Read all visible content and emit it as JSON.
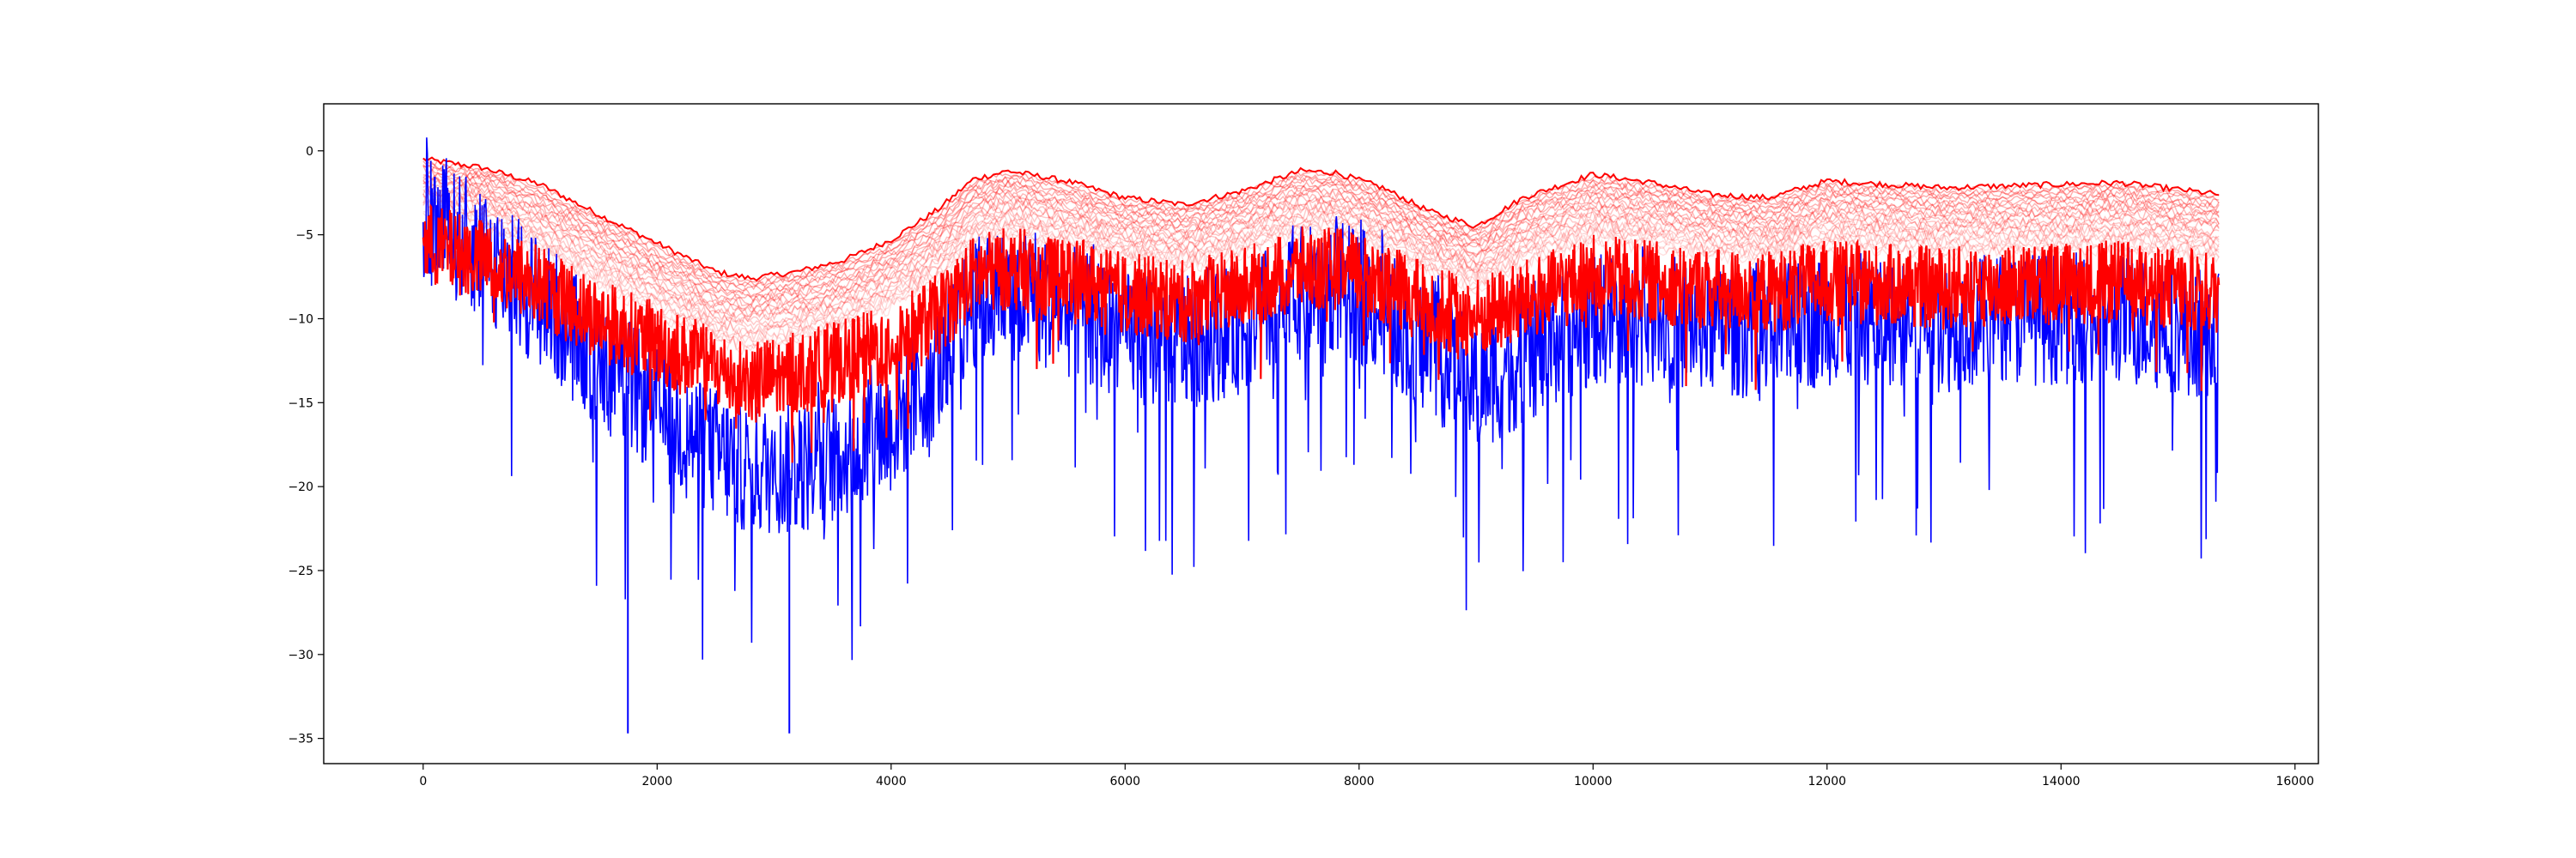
{
  "chart_data": {
    "type": "line",
    "title": "",
    "xlabel": "",
    "ylabel": "",
    "xlim": [
      -850,
      16200
    ],
    "ylim": [
      -36.5,
      2.8
    ],
    "x_ticks": [
      0,
      2000,
      4000,
      6000,
      8000,
      10000,
      12000,
      14000,
      16000
    ],
    "x_tick_labels": [
      "0",
      "2000",
      "4000",
      "6000",
      "8000",
      "10000",
      "12000",
      "14000",
      "16000"
    ],
    "y_ticks": [
      0,
      -5,
      -10,
      -15,
      -20,
      -25,
      -30,
      -35
    ],
    "y_tick_labels": [
      "0",
      "−5",
      "−10",
      "−15",
      "−20",
      "−25",
      "−30",
      "−35"
    ],
    "grid": false,
    "legend": "none",
    "series_colors": {
      "upper_bundle": "#ff0000",
      "noisy_signal": "#0000ff",
      "dense_signal": "#ff0000"
    },
    "x_range": [
      0,
      15350
    ],
    "series": [
      {
        "role": "upper_bundle",
        "description_values": "top envelope of the red curve bundle",
        "x": [
          0,
          500,
          1000,
          1500,
          2000,
          2500,
          2800,
          3200,
          3600,
          4000,
          4400,
          4700,
          5000,
          5500,
          6000,
          6500,
          7000,
          7500,
          7800,
          8200,
          8600,
          9000,
          9400,
          10000,
          10500,
          11000,
          11500,
          12000,
          12500,
          13000,
          13500,
          14000,
          14500,
          15000,
          15350
        ],
        "values": [
          -0.5,
          -1.0,
          -2.0,
          -3.8,
          -5.5,
          -7.2,
          -7.6,
          -7.2,
          -6.5,
          -5.3,
          -3.5,
          -1.7,
          -1.2,
          -1.8,
          -2.8,
          -3.2,
          -2.4,
          -1.2,
          -1.3,
          -2.2,
          -3.6,
          -4.5,
          -2.8,
          -1.4,
          -1.9,
          -2.6,
          -2.8,
          -1.8,
          -2.0,
          -2.2,
          -2.1,
          -2.0,
          -1.9,
          -2.3,
          -2.6
        ]
      },
      {
        "role": "upper_bundle_bottom",
        "description_values": "lower edge of the faint red curve bundle",
        "x": [
          0,
          500,
          1000,
          1500,
          2000,
          2500,
          2800,
          3200,
          3600,
          4000,
          4400,
          4700,
          5000,
          5500,
          6000,
          6500,
          7000,
          7500,
          7800,
          8200,
          8600,
          9000,
          9400,
          10000,
          10500,
          11000,
          11500,
          12000,
          12500,
          13000,
          13500,
          14000,
          14500,
          15000,
          15350
        ],
        "values": [
          -3.5,
          -4.5,
          -6.0,
          -8.0,
          -9.8,
          -11.4,
          -11.8,
          -11.3,
          -10.5,
          -9.3,
          -7.8,
          -5.7,
          -5.2,
          -5.8,
          -6.6,
          -7.0,
          -6.2,
          -5.1,
          -5.2,
          -6.0,
          -7.3,
          -8.3,
          -6.8,
          -5.4,
          -5.8,
          -6.3,
          -6.5,
          -5.8,
          -6.0,
          -6.2,
          -6.1,
          -6.0,
          -5.9,
          -6.2,
          -6.5
        ]
      },
      {
        "role": "dense_signal",
        "description_values": "center line of the solid red noisy band",
        "x": [
          0,
          500,
          1000,
          1500,
          2000,
          2500,
          2800,
          3200,
          3600,
          4000,
          4400,
          4700,
          5000,
          5500,
          6000,
          6500,
          7000,
          7500,
          7800,
          8200,
          8600,
          9000,
          9400,
          10000,
          10500,
          11000,
          11500,
          12000,
          12500,
          13000,
          13500,
          14000,
          14500,
          15000,
          15350
        ],
        "values": [
          -5.5,
          -6.5,
          -8.0,
          -10.0,
          -11.5,
          -13.0,
          -13.8,
          -13.2,
          -12.5,
          -11.5,
          -9.8,
          -7.5,
          -7.0,
          -7.5,
          -8.5,
          -9.0,
          -8.2,
          -7.0,
          -7.0,
          -7.8,
          -9.2,
          -10.0,
          -9.0,
          -7.5,
          -7.8,
          -8.2,
          -8.4,
          -7.8,
          -8.0,
          -8.2,
          -8.0,
          -7.9,
          -7.8,
          -8.2,
          -8.5
        ],
        "noise_amplitude": 2.5
      },
      {
        "role": "noisy_signal",
        "description_values": "center line of the blue noisy series",
        "x": [
          0,
          500,
          1000,
          1500,
          2000,
          2500,
          2800,
          3200,
          3600,
          4000,
          4400,
          4700,
          5000,
          5500,
          6000,
          6500,
          7000,
          7500,
          7800,
          8200,
          8600,
          9000,
          9400,
          10000,
          10500,
          11000,
          11500,
          12000,
          12500,
          13000,
          13500,
          14000,
          14500,
          15000,
          15350
        ],
        "values": [
          -4.0,
          -6.0,
          -9.0,
          -12.5,
          -15.5,
          -18.0,
          -19.0,
          -19.0,
          -18.0,
          -16.5,
          -13.0,
          -9.0,
          -8.5,
          -9.5,
          -11.0,
          -11.5,
          -10.5,
          -8.5,
          -8.0,
          -9.5,
          -12.0,
          -14.0,
          -12.5,
          -10.0,
          -10.0,
          -10.5,
          -11.0,
          -10.0,
          -10.0,
          -10.5,
          -10.0,
          -10.0,
          -10.0,
          -10.5,
          -11.0
        ],
        "noise_amplitude": 4.0,
        "min": -34.7,
        "max": 0.9,
        "minimum_points_x": [
          1750,
          3130
        ]
      }
    ]
  }
}
